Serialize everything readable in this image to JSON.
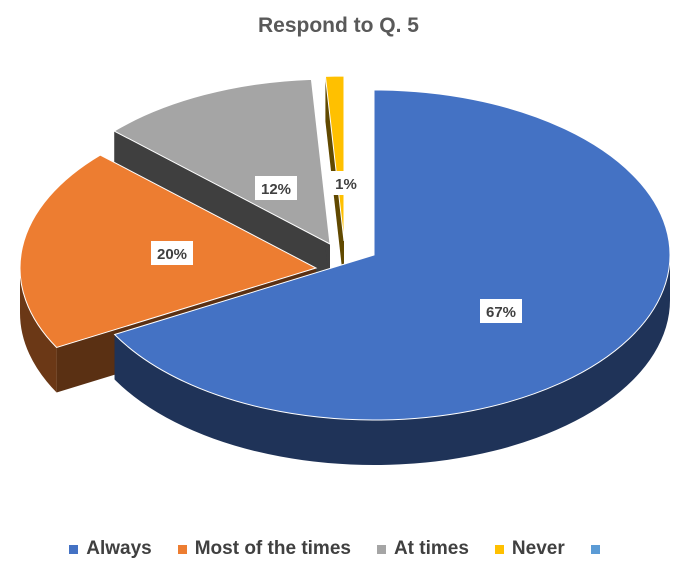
{
  "chart_data": {
    "type": "pie",
    "title": "Respond to Q. 5",
    "categories": [
      "Always",
      "Most of the times",
      "At times",
      "Never",
      ""
    ],
    "values": [
      67,
      20,
      12,
      1,
      0
    ],
    "data_labels": [
      "67%",
      "20%",
      "12%",
      "1%",
      ""
    ],
    "colors": [
      "#4472C4",
      "#ED7D31",
      "#A5A5A5",
      "#FFC000",
      "#5B9BD5"
    ],
    "exploded": true,
    "three_d": true,
    "legend_position": "bottom"
  }
}
